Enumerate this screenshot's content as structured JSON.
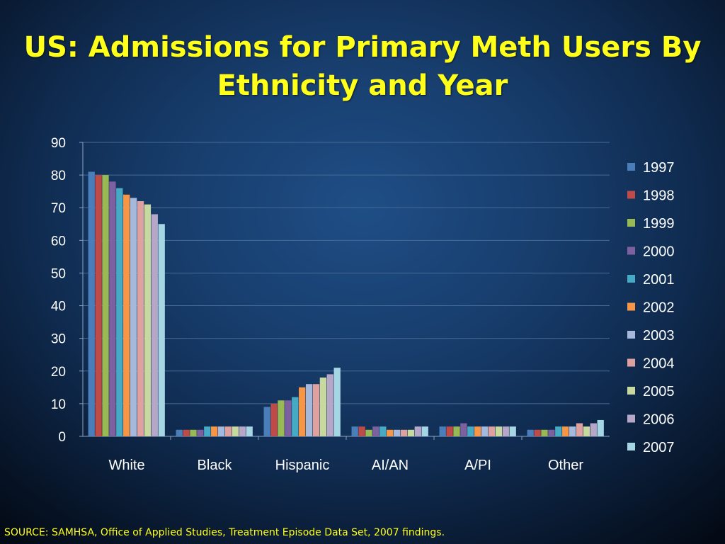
{
  "title": "US: Admissions for Primary Meth Users By Ethnicity and Year",
  "source": "SOURCE: SAMHSA, Office of Applied Studies, Treatment Episode Data Set, 2007 findings.",
  "chart_data": {
    "type": "bar",
    "categories": [
      "White",
      "Black",
      "Hispanic",
      "AI/AN",
      "A/PI",
      "Other"
    ],
    "ylim": [
      0,
      90
    ],
    "yticks": [
      0,
      10,
      20,
      30,
      40,
      50,
      60,
      70,
      80,
      90
    ],
    "grid": true,
    "legend": "right",
    "series": [
      {
        "name": "1997",
        "color": "#4a7ebb",
        "values": [
          81,
          2,
          9,
          3,
          3,
          2
        ]
      },
      {
        "name": "1998",
        "color": "#be4b48",
        "values": [
          80,
          2,
          10,
          3,
          3,
          2
        ]
      },
      {
        "name": "1999",
        "color": "#98b954",
        "values": [
          80,
          2,
          11,
          2,
          3,
          2
        ]
      },
      {
        "name": "2000",
        "color": "#7d60a0",
        "values": [
          78,
          2,
          11,
          3,
          4,
          2
        ]
      },
      {
        "name": "2001",
        "color": "#46aac5",
        "values": [
          76,
          3,
          12,
          3,
          3,
          3
        ]
      },
      {
        "name": "2002",
        "color": "#f79646",
        "values": [
          74,
          3,
          15,
          2,
          3,
          3
        ]
      },
      {
        "name": "2003",
        "color": "#a5b9dd",
        "values": [
          73,
          3,
          16,
          2,
          3,
          3
        ]
      },
      {
        "name": "2004",
        "color": "#dea1a0",
        "values": [
          72,
          3,
          16,
          2,
          3,
          4
        ]
      },
      {
        "name": "2005",
        "color": "#c8d9a0",
        "values": [
          71,
          3,
          18,
          2,
          3,
          3
        ]
      },
      {
        "name": "2006",
        "color": "#b6a7c9",
        "values": [
          68,
          3,
          19,
          3,
          3,
          4
        ]
      },
      {
        "name": "2007",
        "color": "#a6d5e4",
        "values": [
          65,
          3,
          21,
          3,
          3,
          5
        ]
      }
    ]
  }
}
